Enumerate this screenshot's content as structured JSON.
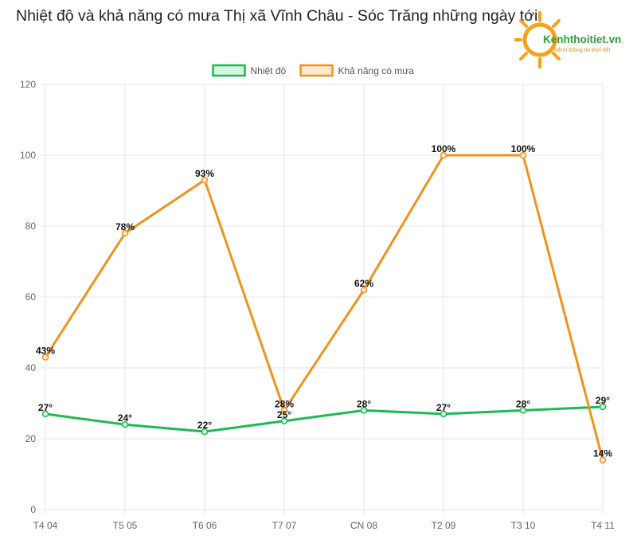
{
  "title": "Nhiệt độ và khả năng có mưa Thị xã Vĩnh Châu - Sóc Trăng những ngày tới",
  "logo": {
    "brand": "Kenhthoitiet.vn",
    "tagline": "Kênh thông tin thời tiết"
  },
  "colors": {
    "temperature": "#1db954",
    "rain": "#f0931e",
    "grid": "#e6e6e6"
  },
  "chart_data": {
    "type": "line",
    "categories": [
      "T4 04",
      "T5 05",
      "T6 06",
      "T7 07",
      "CN 08",
      "T2 09",
      "T3 10",
      "T4 11"
    ],
    "series": [
      {
        "name": "Nhiệt độ",
        "values": [
          27,
          24,
          22,
          25,
          28,
          27,
          28,
          29
        ],
        "labels": [
          "27°",
          "24°",
          "22°",
          "25°",
          "28°",
          "27°",
          "28°",
          "29°"
        ]
      },
      {
        "name": "Khả năng có mưa",
        "values": [
          43,
          78,
          93,
          28,
          62,
          100,
          100,
          14
        ],
        "labels": [
          "43%",
          "78%",
          "93%",
          "28%",
          "62%",
          "100%",
          "100%",
          "14%"
        ]
      }
    ],
    "yticks": [
      "0",
      "20",
      "40",
      "60",
      "80",
      "100",
      "120"
    ],
    "ylim": [
      0,
      120
    ],
    "grid": true,
    "legend": "top-center"
  }
}
